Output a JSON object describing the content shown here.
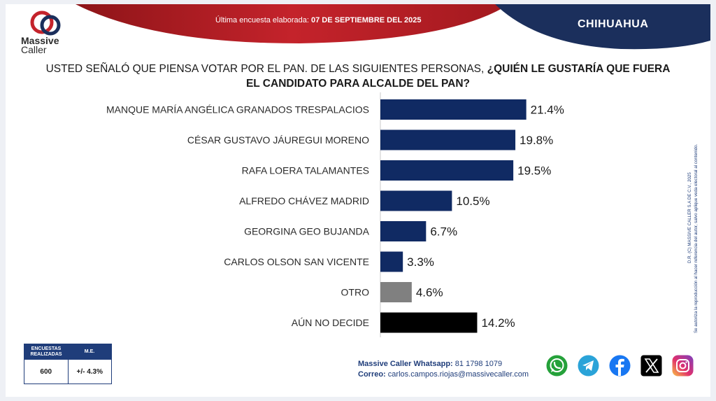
{
  "header": {
    "brand_line1": "Massive",
    "brand_line2": "Caller",
    "survey_label": "Última encuesta elaborada:",
    "survey_date": "07 DE SEPTIEMBRE DEL 2025",
    "region": "CHIHUAHUA",
    "colors": {
      "red": "#b81d24",
      "navy": "#1b2f5c"
    }
  },
  "question": {
    "part1": "USTED SEÑALÓ QUE PIENSA VOTAR POR EL PAN. DE LAS SIGUIENTES PERSONAS, ",
    "part2": "¿QUIÉN LE GUSTARÍA QUE FUERA",
    "part3": "EL CANDIDATO PARA ALCALDE DEL PAN?"
  },
  "chart_data": {
    "type": "bar",
    "orientation": "horizontal",
    "categories": [
      "MANQUE MARÍA ANGÉLICA GRANADOS TRESPALACIOS",
      "CÉSAR GUSTAVO JÁUREGUI MORENO",
      "RAFA LOERA TALAMANTES",
      "ALFREDO CHÁVEZ MADRID",
      "GEORGINA GEO BUJANDA",
      "CARLOS OLSON SAN VICENTE",
      "OTRO",
      "AÚN NO DECIDE"
    ],
    "values": [
      21.4,
      19.8,
      19.5,
      10.5,
      6.7,
      3.3,
      4.6,
      14.2
    ],
    "value_labels": [
      "21.4%",
      "19.8%",
      "19.5%",
      "10.5%",
      "6.7%",
      "3.3%",
      "4.6%",
      "14.2%"
    ],
    "bar_colors": [
      "#102a63",
      "#102a63",
      "#102a63",
      "#102a63",
      "#102a63",
      "#102a63",
      "#808080",
      "#000000"
    ],
    "xlim": [
      0,
      25
    ],
    "grid": false,
    "legend": "none"
  },
  "side_note": {
    "line1": "D.R. (C) MASSIVE CALLER S.A DE C.V., 2025",
    "line2": "Se autoriza la reproducción al hacer referencia del autor, salvo aplique veda electoral al contenido."
  },
  "stats": {
    "col1_header_line1": "ENCUESTAS",
    "col1_header_line2": "REALIZADAS",
    "col2_header": "M.E.",
    "col1_value": "600",
    "col2_value": "+/- 4.3%"
  },
  "contact": {
    "whatsapp_label": "Massive Caller Whatsapp:",
    "whatsapp_number": "81 1798 1079",
    "email_label": "Correo:",
    "email": "carlos.campos.riojas@massivecaller.com"
  },
  "social": {
    "icons": [
      "whatsapp-icon",
      "telegram-icon",
      "facebook-icon",
      "x-icon",
      "instagram-icon"
    ]
  }
}
